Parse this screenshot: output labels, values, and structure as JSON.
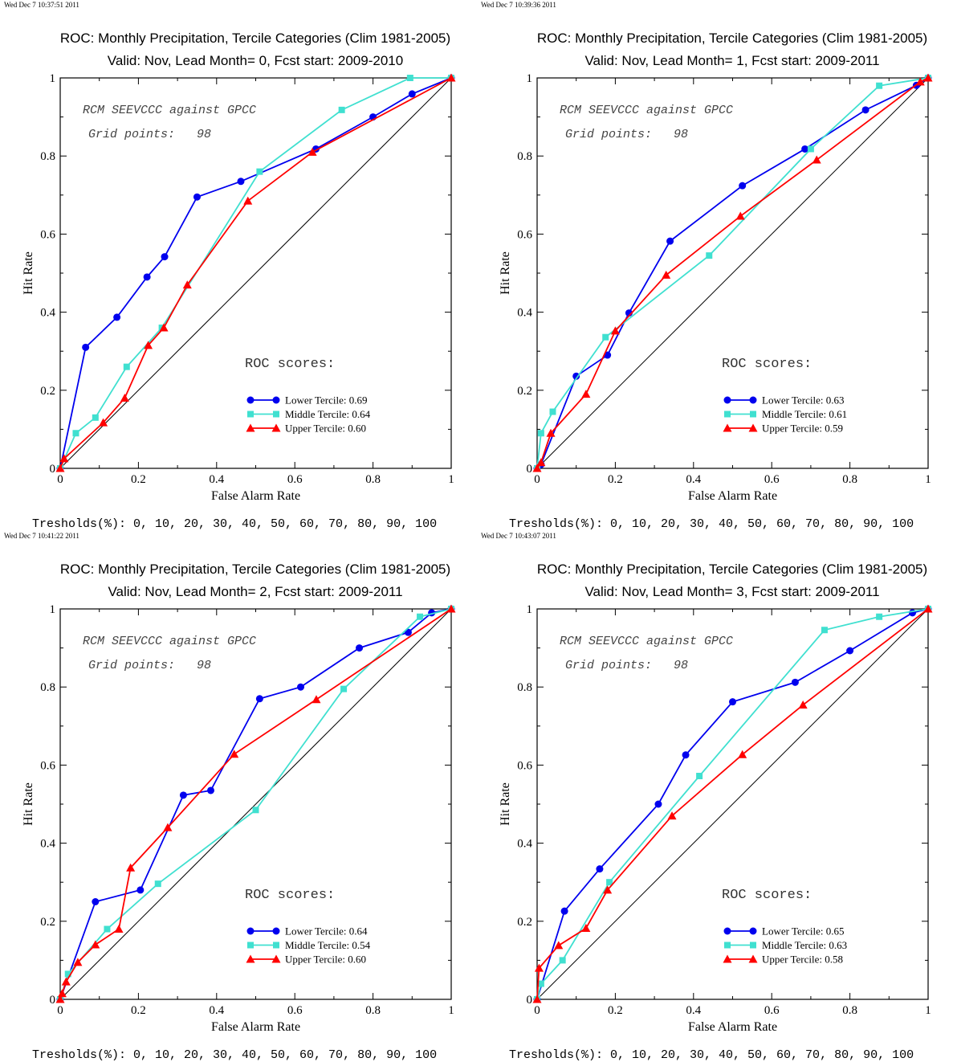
{
  "colors": {
    "lower": "#0000ee",
    "middle": "#40e0d0",
    "upper": "#ff0000",
    "diagonal": "#000000"
  },
  "chart_data": [
    {
      "type": "line",
      "timestamp": "Wed Dec  7 10:37:51 2011",
      "title": "ROC: Monthly Precipitation, Tercile Categories (Clim 1981-2005)",
      "subtitle": "Valid: Nov, Lead Month= 0, Fcst start: 2009-2010",
      "xlabel": "False Alarm Rate",
      "ylabel": "Hit Rate",
      "xlim": [
        0,
        1
      ],
      "ylim": [
        0,
        1
      ],
      "xticks": [
        "0",
        "0.2",
        "0.4",
        "0.6",
        "0.8",
        "1"
      ],
      "yticks": [
        "0",
        "0.2",
        "0.4",
        "0.6",
        "0.8",
        "1"
      ],
      "annotation1": "RCM SEEVCCC against GPCC",
      "annotation2": "Grid points:   98",
      "scores_title": "ROC scores:",
      "thresholds": "Tresholds(%): 0, 10, 20, 30, 40, 50, 60, 70, 80, 90, 100",
      "series": [
        {
          "name": "Lower Tercile: 0.69",
          "marker": "circle",
          "color": "#0000ee",
          "points": [
            [
              0,
              0
            ],
            [
              0.065,
              0.31
            ],
            [
              0.145,
              0.387
            ],
            [
              0.222,
              0.49
            ],
            [
              0.267,
              0.542
            ],
            [
              0.35,
              0.695
            ],
            [
              0.462,
              0.735
            ],
            [
              0.654,
              0.818
            ],
            [
              0.8,
              0.9
            ],
            [
              0.9,
              0.959
            ],
            [
              1,
              1
            ]
          ]
        },
        {
          "name": "Middle Tercile: 0.64",
          "marker": "square",
          "color": "#40e0d0",
          "points": [
            [
              0,
              0
            ],
            [
              0.04,
              0.09
            ],
            [
              0.09,
              0.13
            ],
            [
              0.17,
              0.26
            ],
            [
              0.26,
              0.36
            ],
            [
              0.51,
              0.76
            ],
            [
              0.72,
              0.918
            ],
            [
              0.895,
              1
            ],
            [
              1,
              1
            ]
          ]
        },
        {
          "name": "Upper Tercile: 0.60",
          "marker": "triangle",
          "color": "#ff0000",
          "points": [
            [
              0,
              0
            ],
            [
              0.01,
              0.025
            ],
            [
              0.11,
              0.117
            ],
            [
              0.165,
              0.18
            ],
            [
              0.225,
              0.315
            ],
            [
              0.265,
              0.36
            ],
            [
              0.325,
              0.47
            ],
            [
              0.48,
              0.685
            ],
            [
              0.645,
              0.81
            ],
            [
              1,
              1
            ]
          ]
        }
      ]
    },
    {
      "type": "line",
      "timestamp": "Wed Dec  7 10:39:36 2011",
      "title": "ROC: Monthly Precipitation, Tercile Categories (Clim 1981-2005)",
      "subtitle": "Valid: Nov, Lead Month= 1, Fcst start: 2009-2011",
      "xlabel": "False Alarm Rate",
      "ylabel": "Hit Rate",
      "xlim": [
        0,
        1
      ],
      "ylim": [
        0,
        1
      ],
      "xticks": [
        "0",
        "0.2",
        "0.4",
        "0.6",
        "0.8",
        "1"
      ],
      "yticks": [
        "0",
        "0.2",
        "0.4",
        "0.6",
        "0.8",
        "1"
      ],
      "annotation1": "RCM SEEVCCC against GPCC",
      "annotation2": "Grid points:   98",
      "scores_title": "ROC scores:",
      "thresholds": "Tresholds(%): 0, 10, 20, 30, 40, 50, 60, 70, 80, 90, 100",
      "series": [
        {
          "name": "Lower Tercile: 0.63",
          "marker": "circle",
          "color": "#0000ee",
          "points": [
            [
              0,
              0
            ],
            [
              0.01,
              0.01
            ],
            [
              0.1,
              0.236
            ],
            [
              0.18,
              0.29
            ],
            [
              0.235,
              0.398
            ],
            [
              0.34,
              0.582
            ],
            [
              0.525,
              0.724
            ],
            [
              0.685,
              0.818
            ],
            [
              0.84,
              0.918
            ],
            [
              0.97,
              0.981
            ],
            [
              1,
              1
            ]
          ]
        },
        {
          "name": "Middle Tercile: 0.61",
          "marker": "square",
          "color": "#40e0d0",
          "points": [
            [
              0,
              0
            ],
            [
              0.01,
              0.09
            ],
            [
              0.04,
              0.145
            ],
            [
              0.175,
              0.336
            ],
            [
              0.44,
              0.545
            ],
            [
              0.7,
              0.818
            ],
            [
              0.875,
              0.98
            ],
            [
              1,
              1
            ]
          ]
        },
        {
          "name": "Upper Tercile: 0.59",
          "marker": "triangle",
          "color": "#ff0000",
          "points": [
            [
              0,
              0
            ],
            [
              0.01,
              0.015
            ],
            [
              0.035,
              0.09
            ],
            [
              0.125,
              0.19
            ],
            [
              0.2,
              0.352
            ],
            [
              0.33,
              0.495
            ],
            [
              0.52,
              0.646
            ],
            [
              0.715,
              0.79
            ],
            [
              0.98,
              0.99
            ],
            [
              1,
              1
            ]
          ]
        }
      ]
    },
    {
      "type": "line",
      "timestamp": "Wed Dec  7 10:41:22 2011",
      "title": "ROC: Monthly Precipitation, Tercile Categories (Clim 1981-2005)",
      "subtitle": "Valid: Nov, Lead Month= 2, Fcst start: 2009-2011",
      "xlabel": "False Alarm Rate",
      "ylabel": "Hit Rate",
      "xlim": [
        0,
        1
      ],
      "ylim": [
        0,
        1
      ],
      "xticks": [
        "0",
        "0.2",
        "0.4",
        "0.6",
        "0.8",
        "1"
      ],
      "yticks": [
        "0",
        "0.2",
        "0.4",
        "0.6",
        "0.8",
        "1"
      ],
      "annotation1": "RCM SEEVCCC against GPCC",
      "annotation2": "Grid points:   98",
      "scores_title": "ROC scores:",
      "thresholds": "Tresholds(%): 0, 10, 20, 30, 40, 50, 60, 70, 80, 90, 100",
      "series": [
        {
          "name": "Lower Tercile: 0.64",
          "marker": "circle",
          "color": "#0000ee",
          "points": [
            [
              0,
              0
            ],
            [
              0.09,
              0.25
            ],
            [
              0.205,
              0.28
            ],
            [
              0.315,
              0.523
            ],
            [
              0.385,
              0.535
            ],
            [
              0.51,
              0.77
            ],
            [
              0.615,
              0.8
            ],
            [
              0.765,
              0.9
            ],
            [
              0.89,
              0.94
            ],
            [
              0.95,
              0.99
            ],
            [
              1,
              1
            ]
          ]
        },
        {
          "name": "Middle Tercile: 0.54",
          "marker": "square",
          "color": "#40e0d0",
          "points": [
            [
              0,
              0
            ],
            [
              0.02,
              0.065
            ],
            [
              0.12,
              0.18
            ],
            [
              0.25,
              0.296
            ],
            [
              0.5,
              0.485
            ],
            [
              0.725,
              0.795
            ],
            [
              0.92,
              0.98
            ],
            [
              1,
              1
            ]
          ]
        },
        {
          "name": "Upper Tercile: 0.60",
          "marker": "triangle",
          "color": "#ff0000",
          "points": [
            [
              0,
              0
            ],
            [
              0.005,
              0.015
            ],
            [
              0.015,
              0.045
            ],
            [
              0.045,
              0.095
            ],
            [
              0.09,
              0.14
            ],
            [
              0.15,
              0.18
            ],
            [
              0.18,
              0.337
            ],
            [
              0.275,
              0.44
            ],
            [
              0.445,
              0.628
            ],
            [
              0.655,
              0.768
            ],
            [
              1,
              1
            ]
          ]
        }
      ]
    },
    {
      "type": "line",
      "timestamp": "Wed Dec  7 10:43:07 2011",
      "title": "ROC: Monthly Precipitation, Tercile Categories (Clim 1981-2005)",
      "subtitle": "Valid: Nov, Lead Month= 3, Fcst start: 2009-2011",
      "xlabel": "False Alarm Rate",
      "ylabel": "Hit Rate",
      "xlim": [
        0,
        1
      ],
      "ylim": [
        0,
        1
      ],
      "xticks": [
        "0",
        "0.2",
        "0.4",
        "0.6",
        "0.8",
        "1"
      ],
      "yticks": [
        "0",
        "0.2",
        "0.4",
        "0.6",
        "0.8",
        "1"
      ],
      "annotation1": "RCM SEEVCCC against GPCC",
      "annotation2": "Grid points:   98",
      "scores_title": "ROC scores:",
      "thresholds": "Tresholds(%): 0, 10, 20, 30, 40, 50, 60, 70, 80, 90, 100",
      "series": [
        {
          "name": "Lower Tercile: 0.65",
          "marker": "circle",
          "color": "#0000ee",
          "points": [
            [
              0,
              0
            ],
            [
              0.07,
              0.226
            ],
            [
              0.16,
              0.334
            ],
            [
              0.31,
              0.5
            ],
            [
              0.38,
              0.626
            ],
            [
              0.5,
              0.762
            ],
            [
              0.66,
              0.812
            ],
            [
              0.8,
              0.893
            ],
            [
              0.96,
              0.99
            ],
            [
              1,
              1
            ]
          ]
        },
        {
          "name": "Middle Tercile: 0.63",
          "marker": "square",
          "color": "#40e0d0",
          "points": [
            [
              0,
              0
            ],
            [
              0.01,
              0.04
            ],
            [
              0.065,
              0.1
            ],
            [
              0.185,
              0.3
            ],
            [
              0.415,
              0.572
            ],
            [
              0.735,
              0.946
            ],
            [
              0.875,
              0.98
            ],
            [
              1,
              1
            ]
          ]
        },
        {
          "name": "Upper Tercile: 0.58",
          "marker": "triangle",
          "color": "#ff0000",
          "points": [
            [
              0,
              0
            ],
            [
              0.005,
              0.08
            ],
            [
              0.055,
              0.138
            ],
            [
              0.125,
              0.182
            ],
            [
              0.18,
              0.28
            ],
            [
              0.345,
              0.47
            ],
            [
              0.525,
              0.627
            ],
            [
              0.68,
              0.754
            ],
            [
              1,
              1
            ]
          ]
        }
      ]
    }
  ]
}
